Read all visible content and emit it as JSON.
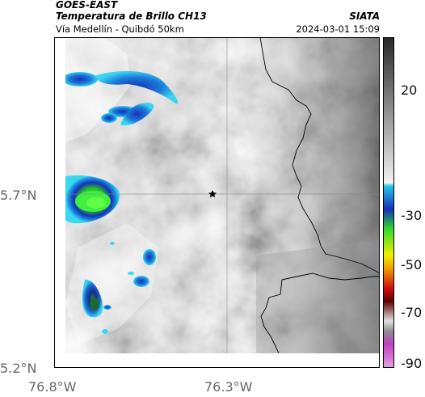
{
  "header": {
    "satellite": "GOES-EAST",
    "product": "Temperatura de Brillo CH13",
    "route": "Vía Medellín - Quibdó 50km",
    "organization": "SIATA",
    "timestamp": "2024-03-01 15:09"
  },
  "map": {
    "lat_labels": [
      "5.7°N",
      "5.2°N"
    ],
    "lon_labels": [
      "76.8°W",
      "76.3°W"
    ],
    "marker": "star-marker",
    "gridlines": true
  },
  "colorbar": {
    "ticks": [
      "20",
      "-30",
      "-50",
      "-70",
      "-90"
    ],
    "colors": {
      "gray_dark": "#2a2a2a",
      "gray_light": "#f2f2f2",
      "cyan": "#28c8e8",
      "blue": "#1830b8",
      "green": "#30d830",
      "yellow": "#f0f000",
      "red": "#d01010",
      "magenta": "#c040c0"
    }
  }
}
